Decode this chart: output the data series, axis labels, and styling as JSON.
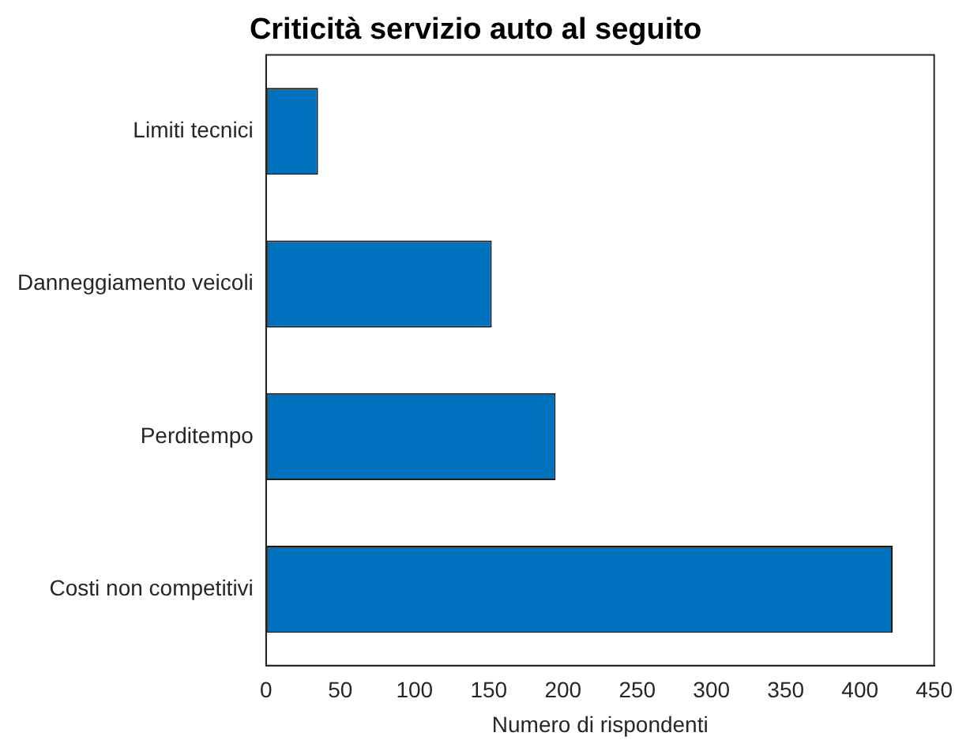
{
  "chart_data": {
    "type": "bar",
    "orientation": "horizontal",
    "title": "Criticità servizio auto al seguito",
    "xlabel": "Numero di rispondenti",
    "categories": [
      "Limiti tecnici",
      "Danneggiamento veicoli",
      "Perditempo",
      "Costi non competitivi"
    ],
    "values": [
      35,
      152,
      195,
      422
    ],
    "color": "#0072bd",
    "xlim": [
      0,
      450
    ],
    "xticks": [
      0,
      50,
      100,
      150,
      200,
      250,
      300,
      350,
      400,
      450
    ],
    "grid": false,
    "legend": false
  }
}
